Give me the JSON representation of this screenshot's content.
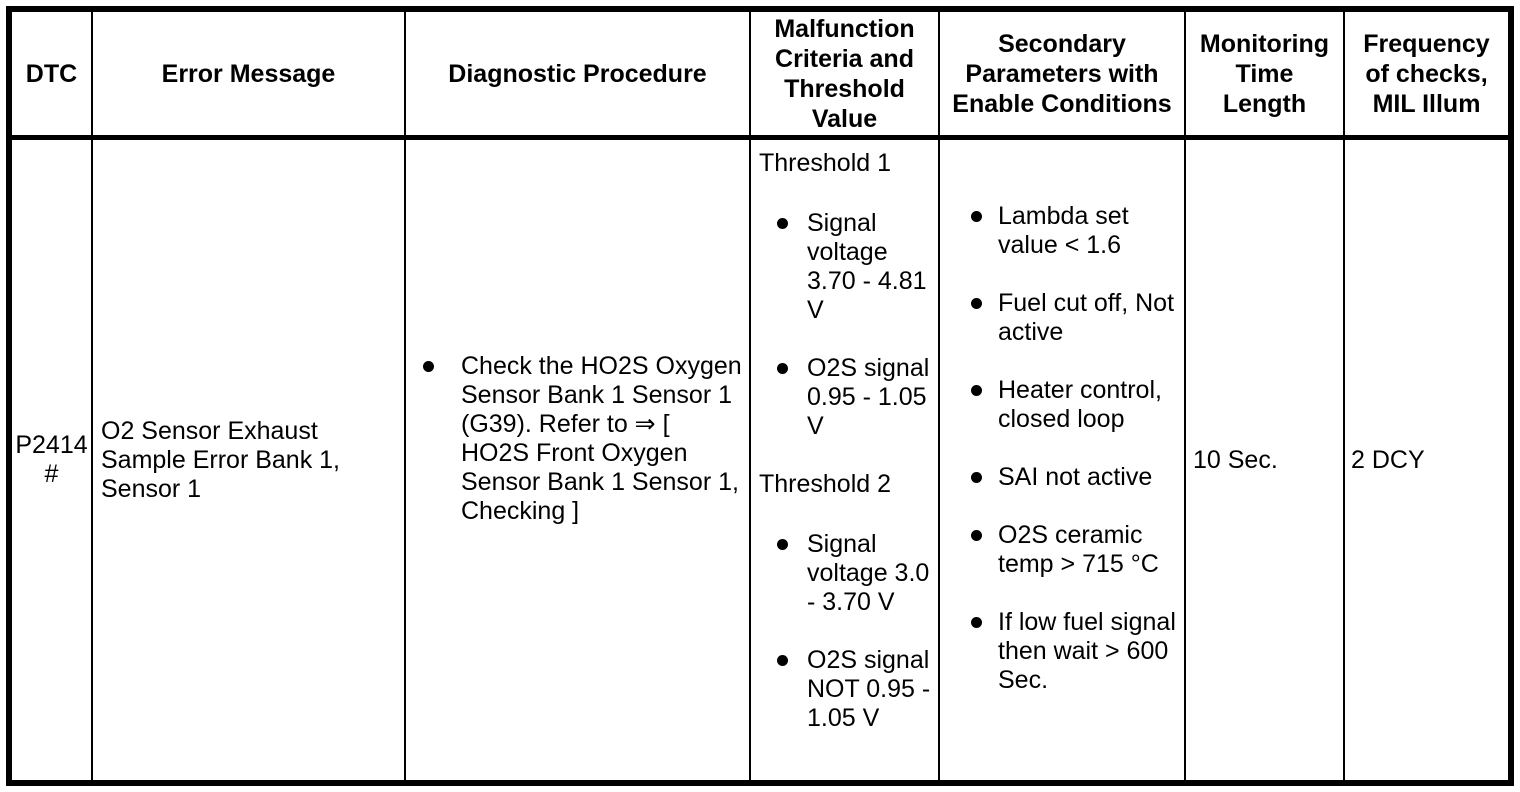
{
  "colors": {
    "border": "#000000",
    "text": "#000000",
    "background": "#ffffff"
  },
  "table": {
    "columns": [
      {
        "label": "DTC"
      },
      {
        "label": "Error Message"
      },
      {
        "label": "Diagnostic Procedure"
      },
      {
        "label": "Malfunction Criteria and Threshold Value"
      },
      {
        "label": "Secondary Parameters with Enable Conditions"
      },
      {
        "label": "Monitoring Time Length"
      },
      {
        "label": "Frequency of checks, MIL Illum"
      }
    ],
    "row": {
      "dtc": "P2414\n#",
      "error_message": "O2 Sensor Exhaust\nSample Error Bank 1,\nSensor 1",
      "diagnostic_procedure": [
        "Check the HO2S Oxygen\nSensor Bank 1 Sensor 1\n(G39). Refer to ⇒ [\nHO2S Front Oxygen\nSensor Bank 1 Sensor 1,\nChecking ]"
      ],
      "malfunction_criteria": {
        "sections": [
          {
            "title": "Threshold 1",
            "items": [
              "Signal\nvoltage\n3.70 - 4.81\nV",
              "O2S signal\n0.95 - 1.05\nV"
            ]
          },
          {
            "title": "Threshold 2",
            "items": [
              "Signal\nvoltage 3.0\n- 3.70 V",
              "O2S signal\nNOT 0.95 -\n1.05 V"
            ]
          }
        ]
      },
      "secondary_parameters": [
        "Lambda set\nvalue < 1.6",
        "Fuel cut off, Not\nactive",
        "Heater control,\nclosed loop",
        "SAI not active",
        "O2S ceramic\ntemp > 715 °C",
        "If low fuel signal\nthen wait > 600\nSec."
      ],
      "monitoring_time": "10 Sec.",
      "frequency": "2 DCY"
    }
  }
}
